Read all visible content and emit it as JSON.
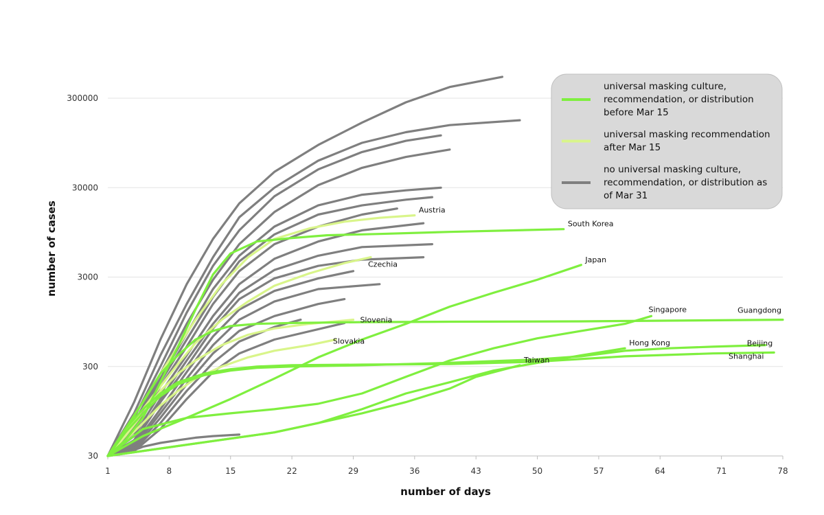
{
  "chart_data": {
    "type": "line",
    "xlabel": "number of days",
    "ylabel": "number of cases",
    "yscale": "log",
    "xlim": [
      1,
      78
    ],
    "ylim": [
      30,
      600000
    ],
    "x_ticks": [
      1,
      8,
      15,
      22,
      29,
      36,
      43,
      50,
      57,
      64,
      71,
      78
    ],
    "y_ticks": [
      30,
      300,
      3000,
      30000,
      300000
    ],
    "grid": "horizontal",
    "colors": {
      "before_mar15": "#7fef3f",
      "after_mar15": "#d9f58a",
      "none": "#7f7f7f"
    },
    "legend": [
      {
        "category": "before_mar15",
        "lines": [
          "universal masking culture,",
          "recommendation, or distribution",
          "before Mar 15"
        ]
      },
      {
        "category": "after_mar15",
        "lines": [
          "universal masking recommendation",
          "after Mar 15"
        ]
      },
      {
        "category": "none",
        "lines": [
          "no universal masking culture,",
          "recommendation, or distribution as",
          "of Mar 31"
        ]
      }
    ],
    "series": [
      {
        "name": "South Korea",
        "category": "before_mar15",
        "x": [
          1,
          3,
          5,
          7,
          9,
          11,
          13,
          15,
          18,
          22,
          26,
          32,
          40,
          53
        ],
        "y": [
          30,
          45,
          80,
          200,
          500,
          1300,
          3200,
          5500,
          7500,
          8200,
          8800,
          9100,
          9600,
          10300
        ]
      },
      {
        "name": "Japan",
        "category": "before_mar15",
        "x": [
          1,
          5,
          10,
          15,
          20,
          25,
          30,
          35,
          40,
          45,
          50,
          55
        ],
        "y": [
          30,
          50,
          80,
          130,
          220,
          380,
          600,
          900,
          1400,
          2000,
          2800,
          4100
        ]
      },
      {
        "name": "Singapore",
        "category": "before_mar15",
        "x": [
          1,
          5,
          10,
          15,
          20,
          25,
          30,
          35,
          40,
          45,
          50,
          55,
          60,
          63
        ],
        "y": [
          30,
          60,
          80,
          90,
          100,
          115,
          150,
          230,
          350,
          480,
          620,
          750,
          900,
          1100
        ]
      },
      {
        "name": "Guangdong",
        "category": "before_mar15",
        "x": [
          1,
          3,
          5,
          7,
          9,
          11,
          13,
          15,
          18,
          22,
          30,
          40,
          55,
          78
        ],
        "y": [
          30,
          60,
          120,
          250,
          400,
          600,
          750,
          850,
          900,
          920,
          940,
          950,
          960,
          1000
        ]
      },
      {
        "name": "Hong Kong",
        "category": "before_mar15",
        "x": [
          1,
          10,
          20,
          25,
          30,
          35,
          40,
          45,
          50,
          55,
          60
        ],
        "y": [
          30,
          40,
          55,
          70,
          100,
          150,
          200,
          270,
          330,
          400,
          480
        ]
      },
      {
        "name": "Beijing",
        "category": "before_mar15",
        "x": [
          1,
          3,
          5,
          7,
          9,
          12,
          15,
          18,
          22,
          30,
          40,
          50,
          60,
          70,
          77
        ],
        "y": [
          30,
          60,
          100,
          150,
          200,
          250,
          280,
          300,
          310,
          315,
          320,
          340,
          390,
          420,
          430
        ]
      },
      {
        "name": "Shanghai",
        "category": "before_mar15",
        "x": [
          1,
          3,
          5,
          7,
          9,
          12,
          15,
          18,
          22,
          30,
          40,
          50,
          55,
          60,
          65,
          70,
          76
        ],
        "y": [
          30,
          55,
          90,
          140,
          190,
          240,
          270,
          290,
          300,
          310,
          330,
          360,
          390,
          450,
          480,
          500,
          520
        ]
      },
      {
        "name": "Taiwan",
        "category": "before_mar15",
        "x": [
          1,
          10,
          20,
          25,
          30,
          35,
          40,
          43,
          48
        ],
        "y": [
          30,
          40,
          55,
          70,
          90,
          120,
          170,
          230,
          310
        ]
      },
      {
        "name": "Austria",
        "category": "after_mar15",
        "x": [
          1,
          3,
          5,
          7,
          9,
          11,
          14,
          17,
          20,
          24,
          28,
          32,
          36
        ],
        "y": [
          30,
          60,
          120,
          250,
          500,
          1000,
          2500,
          5000,
          8000,
          10500,
          12500,
          13800,
          14700
        ]
      },
      {
        "name": "Czechia",
        "category": "after_mar15",
        "x": [
          1,
          3,
          5,
          7,
          9,
          11,
          14,
          17,
          20,
          24,
          28,
          31
        ],
        "y": [
          30,
          55,
          100,
          180,
          320,
          550,
          1000,
          1600,
          2400,
          3300,
          4300,
          5000
        ]
      },
      {
        "name": "Slovenia",
        "category": "after_mar15",
        "x": [
          1,
          3,
          5,
          7,
          9,
          11,
          14,
          17,
          20,
          24,
          28,
          29
        ],
        "y": [
          30,
          50,
          90,
          160,
          250,
          350,
          520,
          680,
          800,
          900,
          980,
          1000
        ]
      },
      {
        "name": "Slovakia",
        "category": "after_mar15",
        "x": [
          1,
          3,
          5,
          7,
          9,
          11,
          14,
          17,
          20,
          24,
          27
        ],
        "y": [
          30,
          45,
          70,
          110,
          160,
          220,
          300,
          380,
          450,
          520,
          600
        ]
      },
      {
        "name": "",
        "category": "none",
        "x": [
          1,
          4,
          7,
          10,
          13,
          16,
          20,
          25,
          30,
          35,
          40,
          46
        ],
        "y": [
          30,
          120,
          600,
          2500,
          8000,
          20000,
          45000,
          90000,
          160000,
          270000,
          400000,
          520000
        ]
      },
      {
        "name": "",
        "category": "none",
        "x": [
          1,
          4,
          7,
          10,
          13,
          16,
          20,
          25,
          30,
          35,
          40,
          48
        ],
        "y": [
          30,
          90,
          400,
          1500,
          5000,
          14000,
          30000,
          60000,
          95000,
          125000,
          150000,
          170000
        ]
      },
      {
        "name": "",
        "category": "none",
        "x": [
          1,
          4,
          7,
          10,
          13,
          16,
          20,
          25,
          30,
          35,
          39
        ],
        "y": [
          30,
          80,
          300,
          1200,
          4000,
          10000,
          24000,
          48000,
          75000,
          100000,
          115000
        ]
      },
      {
        "name": "",
        "category": "none",
        "x": [
          1,
          4,
          7,
          10,
          13,
          16,
          20,
          25,
          30,
          35,
          40
        ],
        "y": [
          30,
          70,
          250,
          900,
          2800,
          7000,
          16000,
          32000,
          50000,
          66000,
          80000
        ]
      },
      {
        "name": "",
        "category": "none",
        "x": [
          1,
          4,
          7,
          10,
          13,
          16,
          20,
          25,
          30,
          35,
          39
        ],
        "y": [
          30,
          65,
          220,
          700,
          2200,
          5200,
          11000,
          19000,
          25000,
          28000,
          30000
        ]
      },
      {
        "name": "",
        "category": "none",
        "x": [
          1,
          4,
          7,
          10,
          13,
          16,
          20,
          25,
          30,
          35,
          38
        ],
        "y": [
          30,
          60,
          200,
          600,
          1800,
          4500,
          9000,
          15000,
          19000,
          22000,
          23500
        ]
      },
      {
        "name": "",
        "category": "none",
        "x": [
          1,
          4,
          7,
          10,
          13,
          16,
          20,
          25,
          30,
          34
        ],
        "y": [
          30,
          55,
          180,
          500,
          1500,
          3500,
          7000,
          11000,
          15000,
          17500
        ]
      },
      {
        "name": "",
        "category": "none",
        "x": [
          1,
          4,
          7,
          10,
          13,
          16,
          20,
          25,
          30,
          37
        ],
        "y": [
          30,
          50,
          150,
          400,
          1100,
          2500,
          4800,
          7500,
          10000,
          12000
        ]
      },
      {
        "name": "",
        "category": "none",
        "x": [
          1,
          4,
          7,
          10,
          13,
          16,
          20,
          25,
          30,
          38
        ],
        "y": [
          30,
          45,
          130,
          350,
          900,
          2000,
          3600,
          5200,
          6500,
          7000
        ]
      },
      {
        "name": "",
        "category": "none",
        "x": [
          1,
          4,
          7,
          10,
          13,
          16,
          20,
          25,
          30,
          37
        ],
        "y": [
          30,
          42,
          120,
          300,
          800,
          1700,
          2900,
          4000,
          4700,
          5000
        ]
      },
      {
        "name": "",
        "category": "none",
        "x": [
          1,
          4,
          7,
          10,
          13,
          16,
          20,
          25,
          29
        ],
        "y": [
          30,
          40,
          100,
          260,
          650,
          1300,
          2100,
          2900,
          3500
        ]
      },
      {
        "name": "",
        "category": "none",
        "x": [
          1,
          4,
          7,
          10,
          13,
          16,
          20,
          25,
          32
        ],
        "y": [
          30,
          38,
          90,
          220,
          520,
          1000,
          1600,
          2200,
          2500
        ]
      },
      {
        "name": "",
        "category": "none",
        "x": [
          1,
          4,
          7,
          10,
          13,
          16,
          20,
          25,
          28
        ],
        "y": [
          30,
          36,
          80,
          190,
          420,
          750,
          1100,
          1500,
          1700
        ]
      },
      {
        "name": "",
        "category": "none",
        "x": [
          1,
          4,
          7,
          10,
          13,
          16,
          20,
          23
        ],
        "y": [
          30,
          35,
          70,
          160,
          330,
          570,
          830,
          1000
        ]
      },
      {
        "name": "",
        "category": "none",
        "x": [
          1,
          4,
          7,
          10,
          13,
          16,
          20,
          28
        ],
        "y": [
          30,
          34,
          60,
          130,
          260,
          420,
          600,
          920
        ]
      },
      {
        "name": "",
        "category": "none",
        "x": [
          1,
          3,
          5,
          7,
          9,
          11,
          13,
          16
        ],
        "y": [
          30,
          32,
          38,
          42,
          45,
          48,
          50,
          52
        ]
      }
    ]
  }
}
